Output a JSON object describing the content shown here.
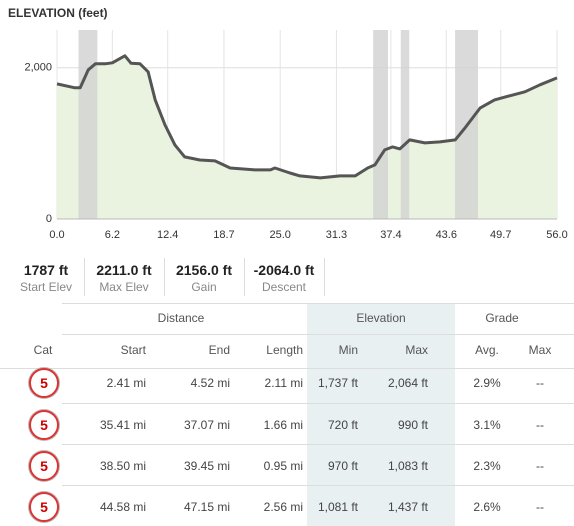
{
  "chart_data": {
    "type": "area",
    "title": "ELEVATION (feet)",
    "x": [
      0,
      2.0,
      2.6,
      3.5,
      4.3,
      5.4,
      6.2,
      6.8,
      7.6,
      8.3,
      9.3,
      10.2,
      11.0,
      12.1,
      13.2,
      14.3,
      16.0,
      17.7,
      19.4,
      22.2,
      23.9,
      24.4,
      26.1,
      27.2,
      29.5,
      31.7,
      33.4,
      34.8,
      35.6,
      36.7,
      37.6,
      38.4,
      39.5,
      41.2,
      42.9,
      44.6,
      45.7,
      47.4,
      49.0,
      50.7,
      52.4,
      54.1,
      56.0
    ],
    "values": [
      1787,
      1735,
      1737,
      1973,
      2053,
      2053,
      2066,
      2106,
      2159,
      2060,
      2053,
      1947,
      1576,
      1245,
      980,
      821,
      781,
      768,
      675,
      649,
      649,
      675,
      609,
      570,
      543,
      570,
      570,
      675,
      715,
      914,
      954,
      927,
      1046,
      1007,
      1020,
      1046,
      1205,
      1470,
      1576,
      1629,
      1682,
      1775,
      1867
    ],
    "bands": [
      [
        2.41,
        4.52
      ],
      [
        35.41,
        37.07
      ],
      [
        38.5,
        39.45
      ],
      [
        44.58,
        47.15
      ]
    ],
    "line_color": "#555555",
    "fill_color": "#e9f3df",
    "band_color": "#d3d3d3",
    "xlim": [
      0,
      56
    ],
    "ylim": [
      0,
      2500
    ],
    "xticks": [
      {
        "value": 0,
        "label": "0.0"
      },
      6.2,
      12.4,
      18.7,
      {
        "value": 25,
        "label": "25.0"
      },
      31.3,
      37.4,
      43.6,
      49.7,
      {
        "value": 56,
        "label": "56.0"
      }
    ],
    "yticks": [
      0,
      {
        "value": 2000,
        "label": "2,000"
      }
    ],
    "grid": true
  },
  "stats": [
    {
      "value": "1787 ft",
      "label": "Start Elev"
    },
    {
      "value": "2211.0 ft",
      "label": "Max Elev"
    },
    {
      "value": "2156.0 ft",
      "label": "Gain"
    },
    {
      "value": "-2064.0 ft",
      "label": "Descent"
    }
  ],
  "table": {
    "groups": [
      "Distance",
      "Elevation",
      "Grade"
    ],
    "columns": [
      "Cat",
      "Start",
      "End",
      "Length",
      "Min",
      "Max",
      "Avg.",
      "Max"
    ],
    "rows": [
      [
        "5",
        "2.41 mi",
        "4.52 mi",
        "2.11 mi",
        "1,737 ft",
        "2,064 ft",
        "2.9%",
        "--"
      ],
      [
        "5",
        "35.41 mi",
        "37.07 mi",
        "1.66 mi",
        "720 ft",
        "990 ft",
        "3.1%",
        "--"
      ],
      [
        "5",
        "38.50 mi",
        "39.45 mi",
        "0.95 mi",
        "970 ft",
        "1,083 ft",
        "2.3%",
        "--"
      ],
      [
        "5",
        "44.58 mi",
        "47.15 mi",
        "2.56 mi",
        "1,081 ft",
        "1,437 ft",
        "2.6%",
        "--"
      ]
    ]
  }
}
